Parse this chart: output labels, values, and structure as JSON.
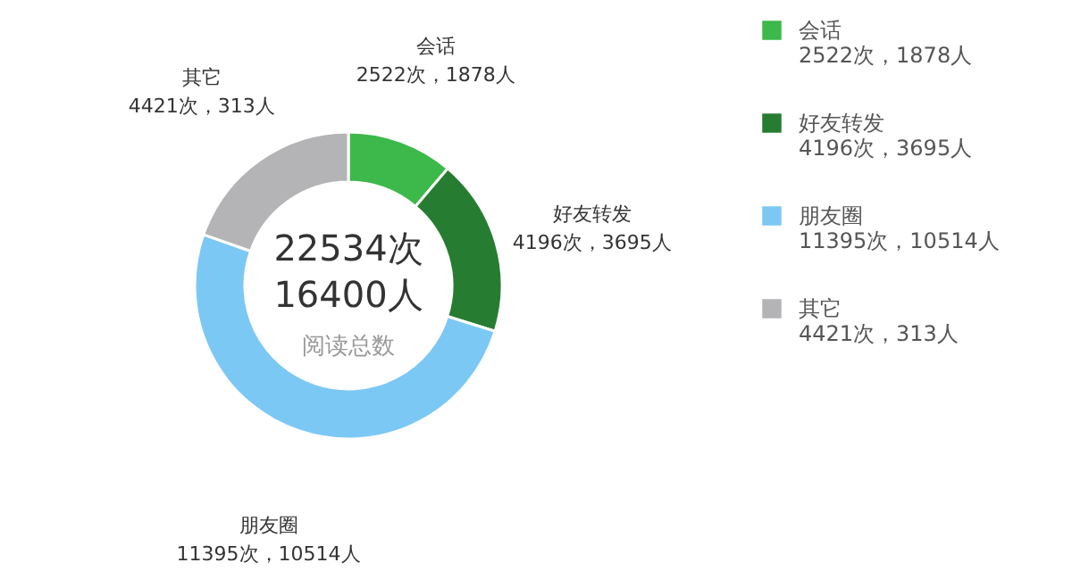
{
  "chart_data": {
    "type": "donut",
    "categories": [
      "会话",
      "好友转发",
      "朋友圈",
      "其它"
    ],
    "values": [
      2522,
      4196,
      11395,
      4421
    ],
    "colors": [
      "#3cb94a",
      "#267d32",
      "#7cc8f5",
      "#b4b4b6"
    ],
    "value_labels": [
      "2522次，1878人",
      "4196次，3695人",
      "11395次，10514人",
      "4421次，313人"
    ],
    "annotations": [
      "22534次",
      "16400人",
      "阅读总数"
    ],
    "legend": "right"
  }
}
